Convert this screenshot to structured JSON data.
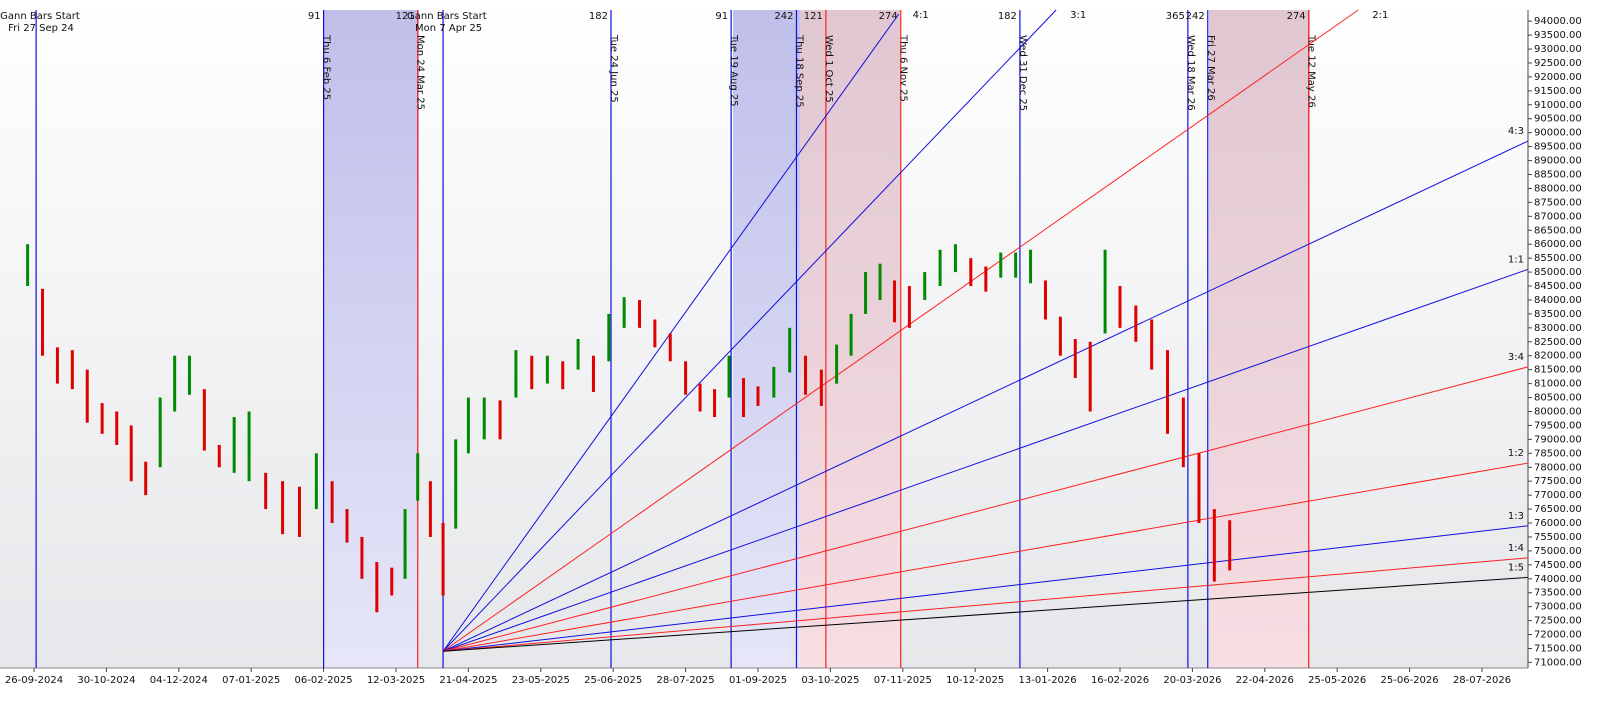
{
  "chart_data": {
    "type": "gann",
    "up_color": "#008a00",
    "down_color": "#e00000",
    "ylim": [
      70800,
      94400
    ],
    "yticks": [
      {
        "value": 71000,
        "label": "71000.00"
      },
      {
        "value": 71500,
        "label": "71500.00"
      },
      {
        "value": 72000,
        "label": "72000.00"
      },
      {
        "value": 72500,
        "label": "72500.00"
      },
      {
        "value": 73000,
        "label": "73000.00"
      },
      {
        "value": 73500,
        "label": "73500.00"
      },
      {
        "value": 74000,
        "label": "74000.00"
      },
      {
        "value": 74500,
        "label": "74500.00"
      },
      {
        "value": 75000,
        "label": "75000.00"
      },
      {
        "value": 75500,
        "label": "75500.00"
      },
      {
        "value": 76000,
        "label": "76000.00"
      },
      {
        "value": 76500,
        "label": "76500.00"
      },
      {
        "value": 77000,
        "label": "77000.00"
      },
      {
        "value": 77500,
        "label": "77500.00"
      },
      {
        "value": 78000,
        "label": "78000.00"
      },
      {
        "value": 78500,
        "label": "78500.00"
      },
      {
        "value": 79000,
        "label": "79000.00"
      },
      {
        "value": 79500,
        "label": "79500.00"
      },
      {
        "value": 80000,
        "label": "80000.00"
      },
      {
        "value": 80500,
        "label": "80500.00"
      },
      {
        "value": 81000,
        "label": "81000.00"
      },
      {
        "value": 81500,
        "label": "81500.00"
      },
      {
        "value": 82000,
        "label": "82000.00"
      },
      {
        "value": 82500,
        "label": "82500.00"
      },
      {
        "value": 83000,
        "label": "83000.00"
      },
      {
        "value": 83500,
        "label": "83500.00"
      },
      {
        "value": 84000,
        "label": "84000.00"
      },
      {
        "value": 84500,
        "label": "84500.00"
      },
      {
        "value": 85000,
        "label": "85000.00"
      },
      {
        "value": 85500,
        "label": "85500.00"
      },
      {
        "value": 86000,
        "label": "86000.00"
      },
      {
        "value": 86500,
        "label": "86500.00"
      },
      {
        "value": 87000,
        "label": "87000.00"
      },
      {
        "value": 87500,
        "label": "87500.00"
      },
      {
        "value": 88000,
        "label": "88000.00"
      },
      {
        "value": 88500,
        "label": "88500.00"
      },
      {
        "value": 89000,
        "label": "89000.00"
      },
      {
        "value": 89500,
        "label": "89500.00"
      },
      {
        "value": 90000,
        "label": "90000.00"
      },
      {
        "value": 90500,
        "label": "90500.00"
      },
      {
        "value": 91000,
        "label": "91000.00"
      },
      {
        "value": 91500,
        "label": "91500.00"
      },
      {
        "value": 92000,
        "label": "92000.00"
      },
      {
        "value": 92500,
        "label": "92500.00"
      },
      {
        "value": 93000,
        "label": "93000.00"
      },
      {
        "value": 93500,
        "label": "93500.00"
      },
      {
        "value": 94000,
        "label": "94000.00"
      }
    ],
    "xticks": [
      "26-09-2024",
      "30-10-2024",
      "04-12-2024",
      "07-01-2025",
      "06-02-2025",
      "12-03-2025",
      "21-04-2025",
      "23-05-2025",
      "25-06-2025",
      "28-07-2025",
      "01-09-2025",
      "03-10-2025",
      "07-11-2025",
      "10-12-2025",
      "13-01-2026",
      "16-02-2026",
      "20-03-2026",
      "22-04-2026",
      "25-05-2026",
      "25-06-2026",
      "28-07-2026"
    ],
    "x": [
      "23-09-2024",
      "30-09-2024",
      "07-10-2024",
      "14-10-2024",
      "21-10-2024",
      "28-10-2024",
      "04-11-2024",
      "11-11-2024",
      "18-11-2024",
      "25-11-2024",
      "02-12-2024",
      "09-12-2024",
      "16-12-2024",
      "23-12-2024",
      "30-12-2024",
      "06-01-2025",
      "13-01-2025",
      "20-01-2025",
      "27-01-2025",
      "03-02-2025",
      "10-02-2025",
      "17-02-2025",
      "24-02-2025",
      "03-03-2025",
      "10-03-2025",
      "17-03-2025",
      "24-03-2025",
      "31-03-2025",
      "07-04-2025",
      "14-04-2025",
      "21-04-2025",
      "28-04-2025",
      "05-05-2025",
      "12-05-2025",
      "19-05-2025",
      "26-05-2025",
      "02-06-2025",
      "09-06-2025",
      "16-06-2025",
      "23-06-2025",
      "30-06-2025",
      "07-07-2025",
      "14-07-2025",
      "21-07-2025",
      "28-07-2025",
      "04-08-2025",
      "11-08-2025",
      "18-08-2025",
      "25-08-2025",
      "01-09-2025",
      "08-09-2025",
      "15-09-2025",
      "22-09-2025",
      "29-09-2025",
      "06-10-2025",
      "13-10-2025",
      "20-10-2025",
      "27-10-2025",
      "03-11-2025",
      "10-11-2025",
      "17-11-2025",
      "24-11-2025",
      "01-12-2025",
      "08-12-2025",
      "15-12-2025",
      "22-12-2025",
      "29-12-2025",
      "05-01-2026",
      "12-01-2026",
      "19-01-2026",
      "26-01-2026",
      "02-02-2026",
      "09-02-2026",
      "16-02-2026",
      "23-02-2026",
      "02-03-2026",
      "09-03-2026",
      "16-03-2026",
      "23-03-2026",
      "30-03-2026",
      "06-04-2026"
    ],
    "high": [
      86000,
      84400,
      82300,
      82200,
      81500,
      80300,
      80000,
      79500,
      78200,
      80500,
      82000,
      82000,
      80800,
      78800,
      79800,
      80000,
      77800,
      77500,
      77300,
      78500,
      77500,
      76500,
      75500,
      74600,
      74400,
      76500,
      78500,
      77500,
      76000,
      79000,
      80500,
      80500,
      80400,
      82200,
      82000,
      82000,
      81800,
      82600,
      82000,
      83500,
      84100,
      84000,
      83300,
      82800,
      81800,
      81000,
      80800,
      82000,
      81200,
      80900,
      81600,
      83000,
      82000,
      81500,
      82400,
      83500,
      85000,
      85300,
      84700,
      84500,
      85000,
      85800,
      86000,
      85500,
      85200,
      85700,
      85700,
      85800,
      84700,
      83400,
      82600,
      82500,
      85800,
      84500,
      83800,
      83300,
      82200,
      80500,
      78500,
      76500,
      76100
    ],
    "low": [
      84500,
      82000,
      81000,
      80800,
      79600,
      79200,
      78800,
      77500,
      77000,
      78000,
      80000,
      80600,
      78600,
      78000,
      77800,
      77500,
      76500,
      75600,
      75500,
      76500,
      76000,
      75300,
      74000,
      72800,
      73400,
      74000,
      76800,
      75500,
      73400,
      75800,
      78500,
      79000,
      79000,
      80500,
      80800,
      81000,
      80800,
      81500,
      80700,
      81800,
      83000,
      83000,
      82300,
      81800,
      80600,
      80000,
      79800,
      80500,
      79800,
      80200,
      80500,
      81400,
      80600,
      80200,
      81000,
      82000,
      83500,
      84000,
      83200,
      83000,
      84000,
      84500,
      85000,
      84500,
      84300,
      84800,
      84800,
      84600,
      83300,
      82000,
      81200,
      80000,
      82800,
      83000,
      82500,
      81500,
      79200,
      78000,
      76000,
      73900,
      74300
    ],
    "vlines": [
      {
        "label": "Fri 27 Sep 24",
        "color": "#1010e0",
        "note": "Gann Bars Start"
      },
      {
        "label": "Thu 6 Feb 25",
        "color": "#1010e0",
        "count": 91
      },
      {
        "label": "Mon 24 Mar 25",
        "color": "#ff2020",
        "count": 121
      },
      {
        "label": "Mon 7 Apr 25",
        "color": "#1010e0",
        "note": "Gann Bars Start"
      },
      {
        "label": "Tue 24 Jun 25",
        "color": "#1010e0",
        "count": 182
      },
      {
        "label": "Tue 19 Aug 25",
        "color": "#1010e0",
        "count": 91
      },
      {
        "label": "Thu 18 Sep 25",
        "color": "#1010e0",
        "count": 242
      },
      {
        "label": "Wed 1 Oct 25",
        "color": "#ff2020",
        "count": 121
      },
      {
        "label": "Thu 6 Nov 25",
        "color": "#ff2020",
        "count": 274
      },
      {
        "label": "Wed 31 Dec 25",
        "color": "#1010e0",
        "count": 182
      },
      {
        "label": "Wed 18 Mar 26",
        "color": "#1010e0",
        "count": 365
      },
      {
        "label": "Fri 27 Mar 26",
        "color": "#1010e0",
        "count": 242
      },
      {
        "label": "Tue 12 May 26",
        "color": "#ff2020",
        "count": 274
      }
    ],
    "fan": {
      "origin_date": "07-04-2025",
      "origin_price": 71400,
      "lines": [
        {
          "label": "4:1",
          "color": "#1010e0",
          "end_date": "05-11-2025",
          "end_price": 94250
        },
        {
          "label": "3:1",
          "color": "#1010e0",
          "end_date": "17-01-2026",
          "end_price": 94400
        },
        {
          "label": "2:1",
          "color": "#ff2020",
          "end_date": "03-06-2026",
          "end_price": 94400
        },
        {
          "label": "4:3",
          "color": "#1010e0",
          "end_date": "18-08-2026",
          "end_price": 89700
        },
        {
          "label": "1:1",
          "color": "#1010e0",
          "end_date": "18-08-2026",
          "end_price": 85100
        },
        {
          "label": "3:4",
          "color": "#ff2020",
          "end_date": "18-08-2026",
          "end_price": 81600
        },
        {
          "label": "1:2",
          "color": "#ff2020",
          "end_date": "18-08-2026",
          "end_price": 78150
        },
        {
          "label": "1:3",
          "color": "#1010e0",
          "end_date": "18-08-2026",
          "end_price": 75900
        },
        {
          "label": "1:4",
          "color": "#ff2020",
          "end_date": "18-08-2026",
          "end_price": 74750
        },
        {
          "label": "1:5",
          "color": "#000000",
          "end_date": "18-08-2026",
          "end_price": 74050
        }
      ]
    }
  }
}
